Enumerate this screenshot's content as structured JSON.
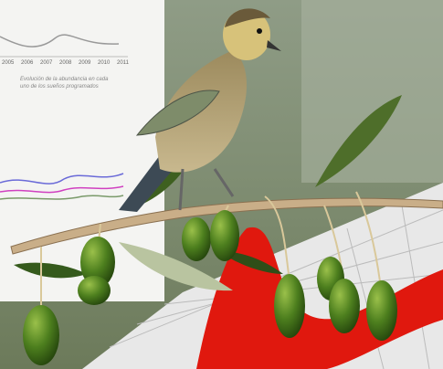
{
  "chart_panel": {
    "years": [
      "2005",
      "2006",
      "2007",
      "2008",
      "2009",
      "2010",
      "2011"
    ],
    "caption": [
      "Evolución de la abundancia en cada",
      "uno de los sueños programados"
    ]
  }
}
